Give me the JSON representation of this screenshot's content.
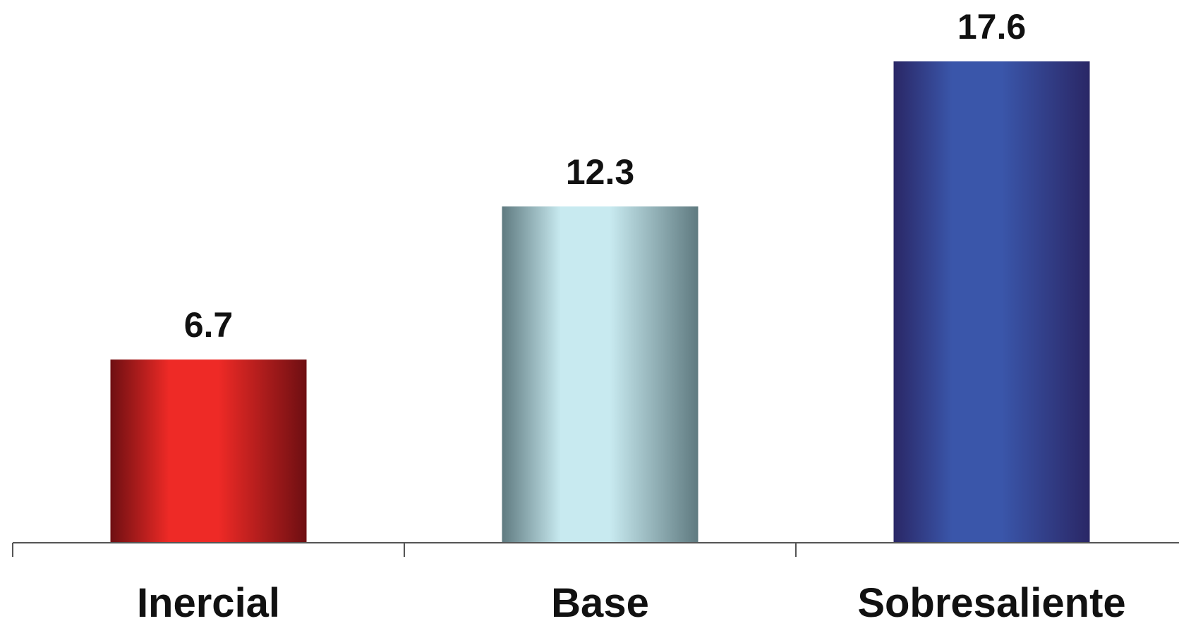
{
  "chart_data": {
    "type": "bar",
    "title": "",
    "xlabel": "",
    "ylabel": "",
    "categories": [
      "Inercial",
      "Base",
      "Sobresaliente"
    ],
    "values": [
      6.7,
      12.3,
      17.6
    ],
    "value_labels": [
      "6.7",
      "12.3",
      "17.6"
    ],
    "ylim": [
      0,
      20
    ],
    "grid": false,
    "legend": "none",
    "bar_colors": [
      {
        "edge": "#6e0f12",
        "mid": "#ee2a26"
      },
      {
        "edge": "#5f7a80",
        "mid": "#c8eaf0"
      },
      {
        "edge": "#2a2766",
        "mid": "#3a56aa"
      }
    ],
    "axis_color": "#555555"
  }
}
